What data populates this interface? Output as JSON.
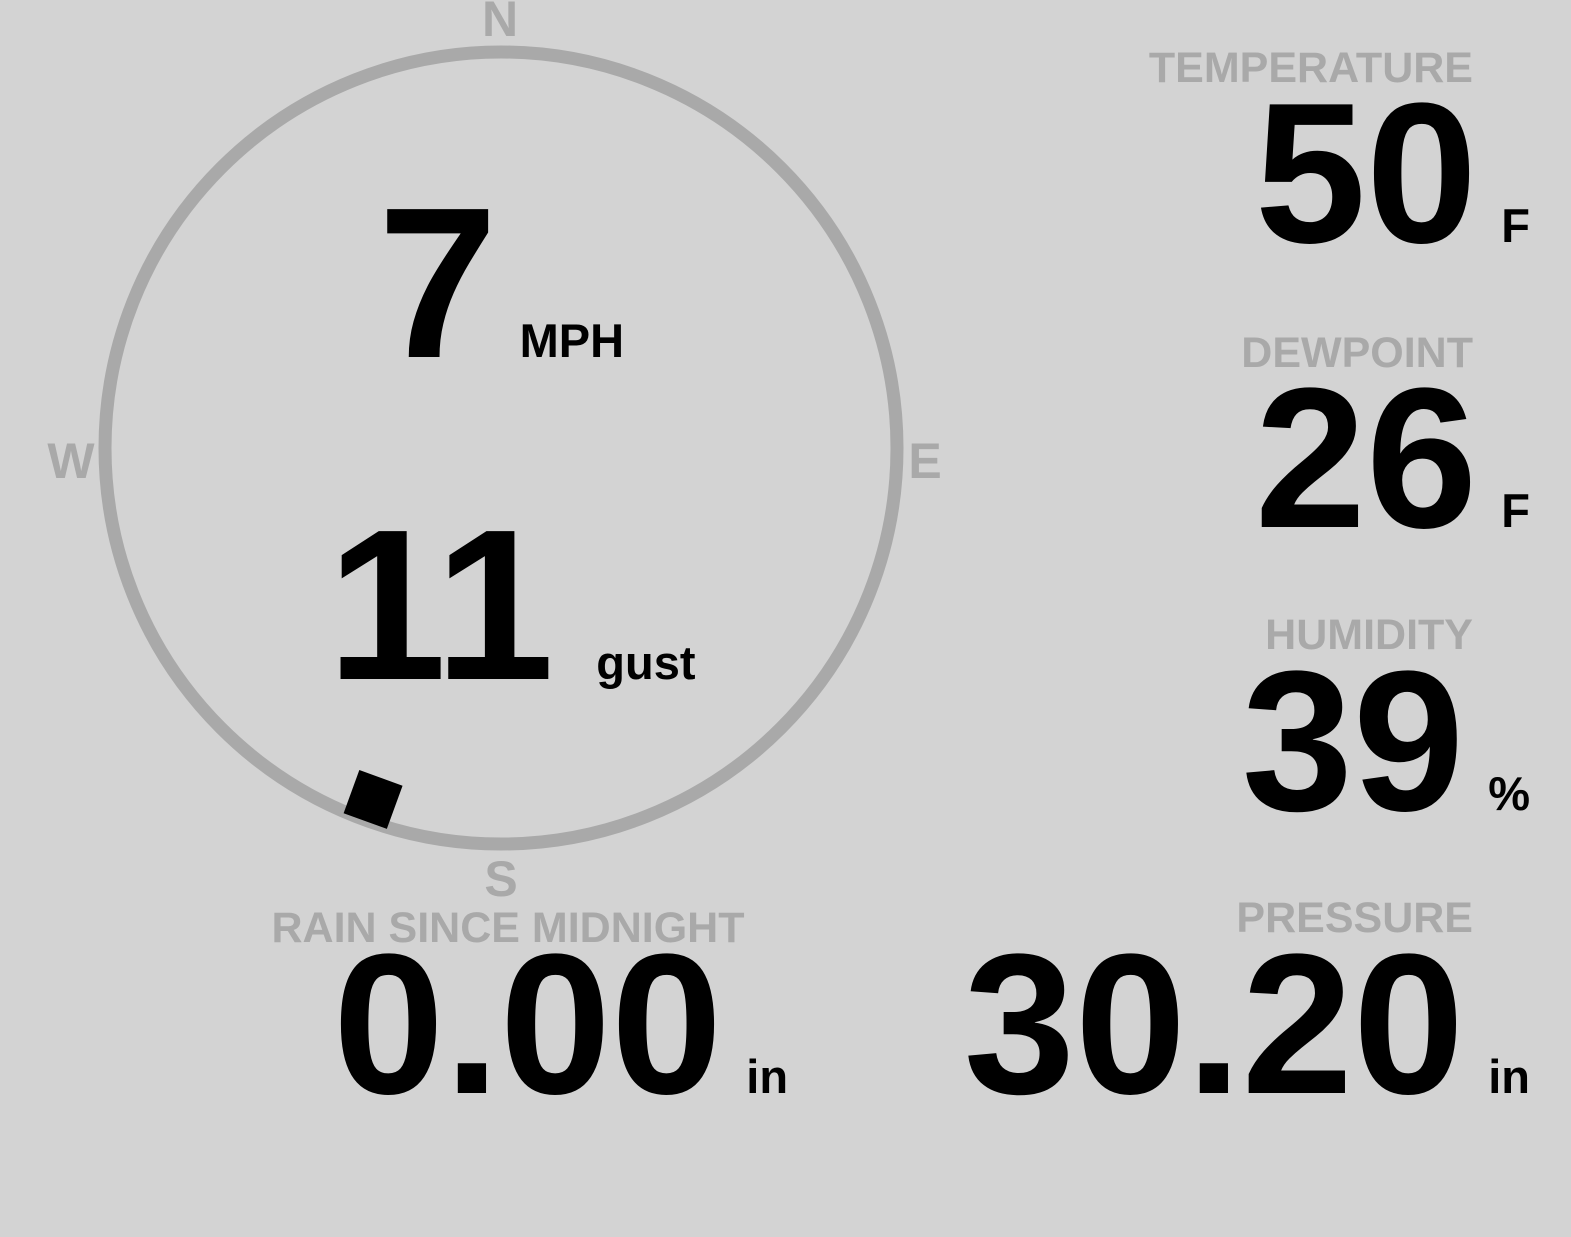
{
  "theme": {
    "background": "#d3d3d3",
    "label_color": "#a9a9a9",
    "ring_color": "#a9a9a9",
    "value_color": "#000000"
  },
  "wind": {
    "speed": "7",
    "speed_unit": "MPH",
    "gust": "11",
    "gust_label": "gust",
    "compass": {
      "north": "N",
      "east": "E",
      "south": "S",
      "west": "W",
      "direction_degrees": 200
    }
  },
  "metrics": {
    "temperature": {
      "label": "TEMPERATURE",
      "value": "50",
      "unit": "F"
    },
    "dewpoint": {
      "label": "DEWPOINT",
      "value": "26",
      "unit": "F"
    },
    "humidity": {
      "label": "HUMIDITY",
      "value": "39",
      "unit": "%"
    },
    "pressure": {
      "label": "PRESSURE",
      "value": "30.20",
      "unit": "in"
    },
    "rain": {
      "label": "RAIN SINCE MIDNIGHT",
      "value": "0.00",
      "unit": "in"
    }
  }
}
